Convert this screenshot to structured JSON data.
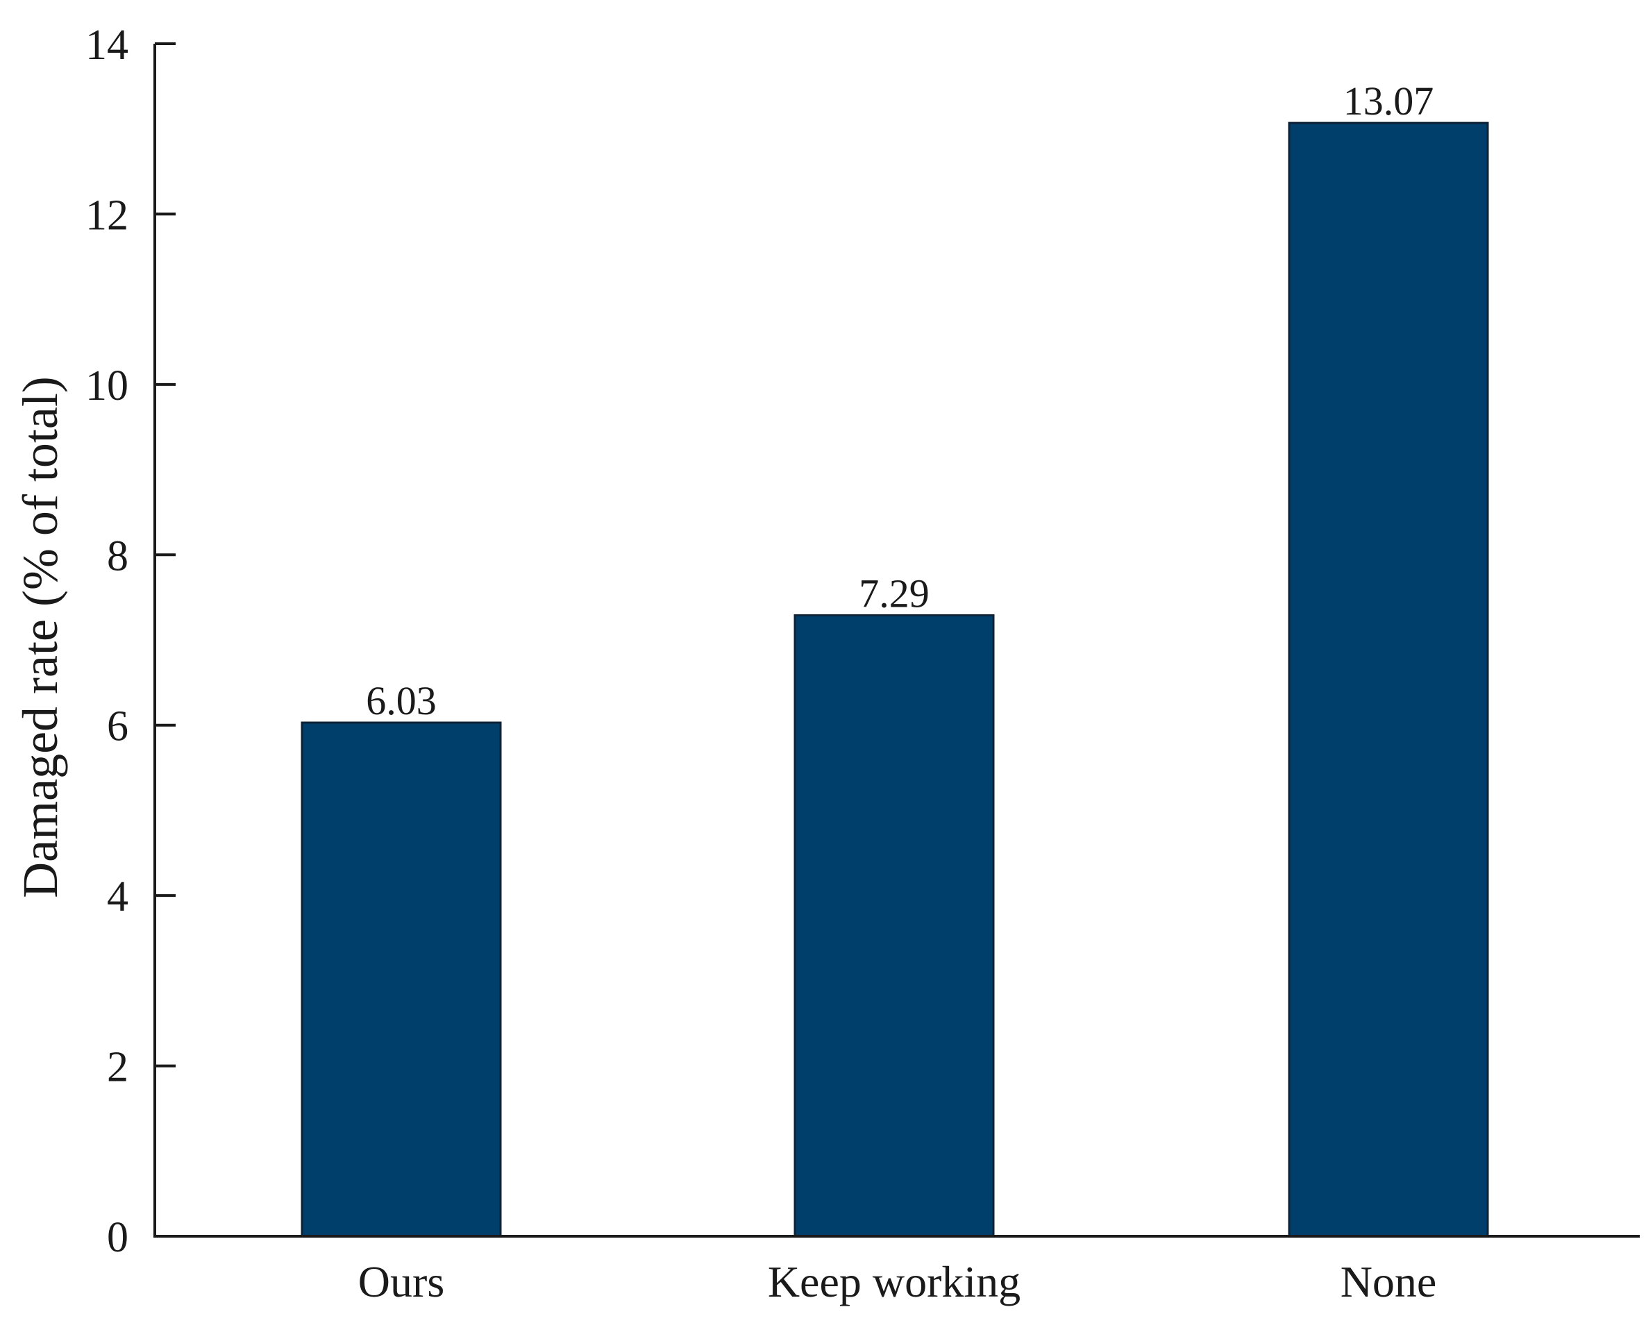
{
  "chart_data": {
    "type": "bar",
    "title": "",
    "xlabel": "",
    "ylabel": "Damaged rate (% of total)",
    "categories": [
      "Ours",
      "Keep working",
      "None"
    ],
    "values": [
      6.03,
      7.29,
      13.07
    ],
    "value_labels": [
      "6.03",
      "7.29",
      "13.07"
    ],
    "ylim": [
      0,
      14
    ],
    "yticks": [
      0,
      2,
      4,
      6,
      8,
      10,
      12,
      14
    ],
    "grid": false,
    "legend": "none",
    "bar_color": "#003f6b",
    "axis_color": "#1a1a1a"
  }
}
